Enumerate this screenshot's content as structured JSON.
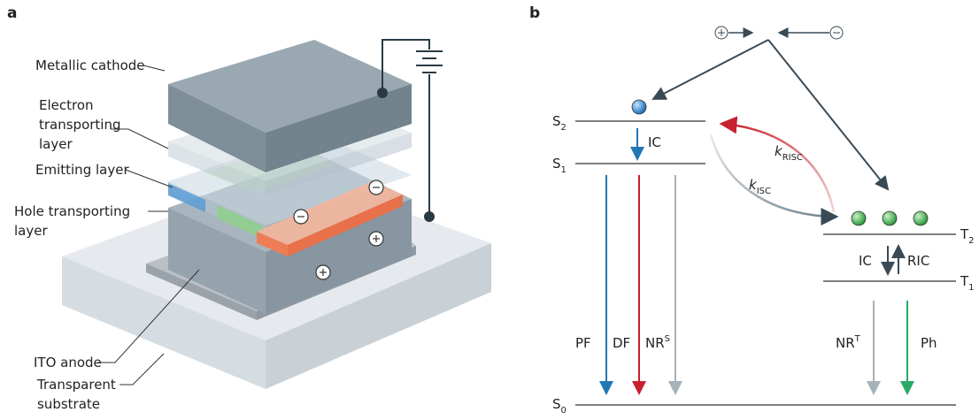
{
  "panel_a": {
    "label": "a",
    "labels": {
      "metallic_cathode": "Metallic cathode",
      "electron_transporting_layer": [
        "Electron",
        "transporting",
        "layer"
      ],
      "emitting_layer": "Emitting layer",
      "hole_transporting_layer": [
        "Hole transporting",
        "layer"
      ],
      "ito_anode": "ITO anode",
      "transparent_substrate": [
        "Transparent",
        "substrate"
      ]
    }
  },
  "panel_b": {
    "label": "b",
    "levels": {
      "s2": {
        "base": "S",
        "sub": "2"
      },
      "s1": {
        "base": "S",
        "sub": "1"
      },
      "s0": {
        "base": "S",
        "sub": "0"
      },
      "t2": {
        "base": "T",
        "sub": "2"
      },
      "t1": {
        "base": "T",
        "sub": "1"
      }
    },
    "rates": {
      "k_risc": {
        "base": "k",
        "sub": "RISC"
      },
      "k_isc": {
        "base": "k",
        "sub": "ISC"
      }
    },
    "transitions": {
      "ic_singlet": "IC",
      "ic_triplet": "IC",
      "ric": "RIC",
      "pf": "PF",
      "df": "DF",
      "nr_s": {
        "base": "NR",
        "sup": "S"
      },
      "nr_t": {
        "base": "NR",
        "sup": "T"
      },
      "ph": "Ph"
    }
  }
}
